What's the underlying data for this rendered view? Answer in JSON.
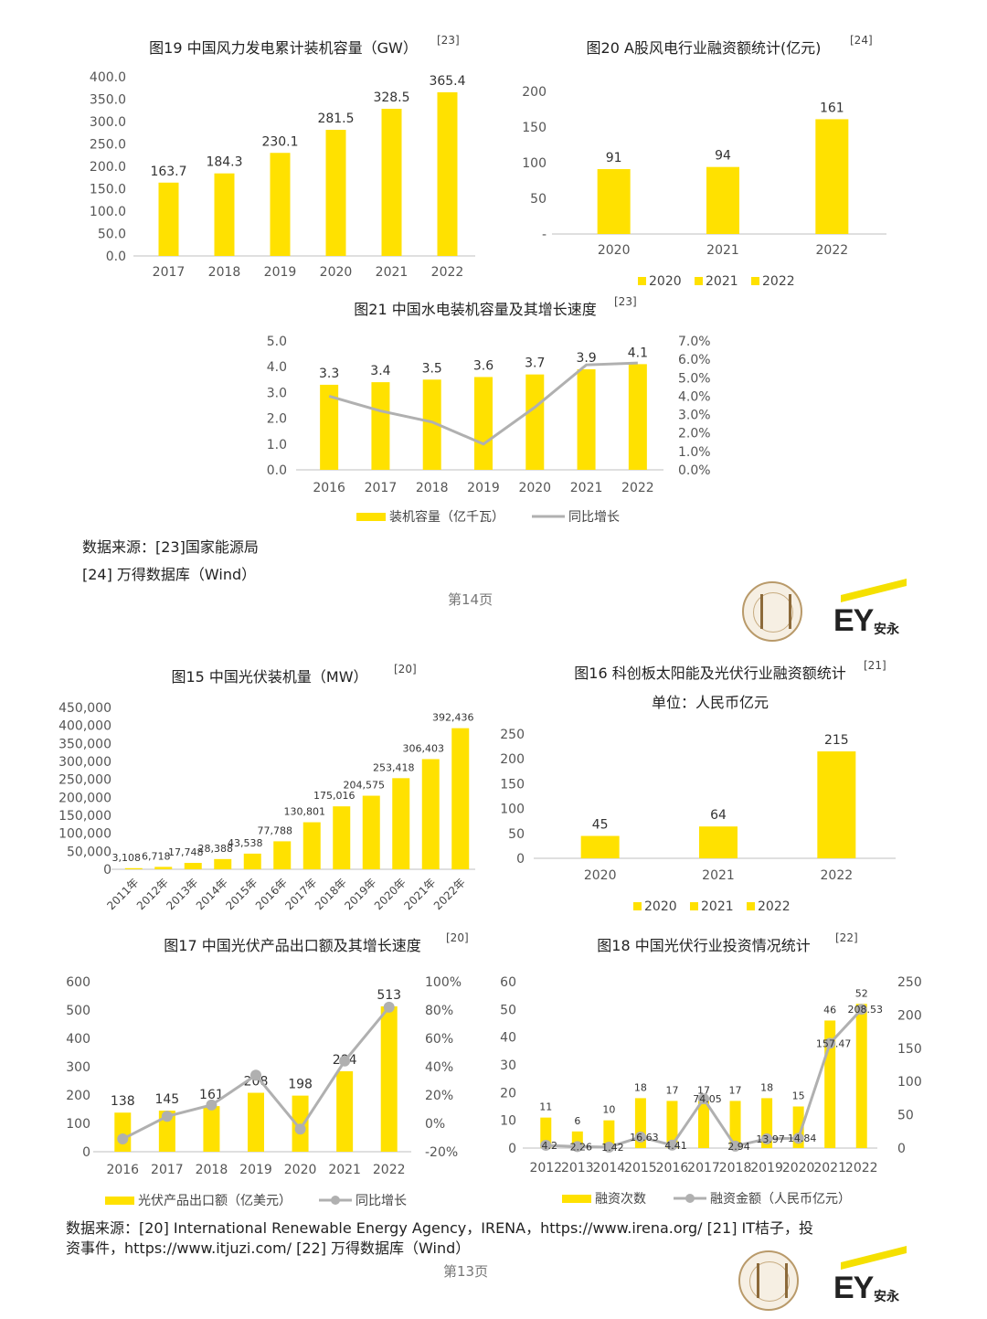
{
  "colors": {
    "bar": "#FFE100",
    "line": "#B0B0B0",
    "axis": "#BFBFBF"
  },
  "page_top": {
    "source_label": "数据来源：[23]国家能源局",
    "source_label2": "[24] 万得数据库（Wind）",
    "page_number": "第14页"
  },
  "page_bottom": {
    "source_label": "数据来源：[20] International Renewable Energy Agency，IRENA，https://www.irena.org/ [21] IT桔子，投",
    "source_label2": "资事件，https://www.itjuzi.com/ [22] 万得数据库（Wind）",
    "page_number": "第13页"
  },
  "logos": {
    "ey": "EY",
    "ey_cn": "安永"
  },
  "chart_data": [
    {
      "id": "fig19",
      "type": "bar",
      "title": "图19 中国风力发电累计装机容量（GW）",
      "ref": "[23]",
      "categories": [
        "2017",
        "2018",
        "2019",
        "2020",
        "2021",
        "2022"
      ],
      "values": [
        163.7,
        184.3,
        230.1,
        281.5,
        328.5,
        365.4
      ],
      "value_labels": [
        "163.7",
        "184.3",
        "230.1",
        "281.5",
        "328.5",
        "365.4"
      ],
      "ylim": [
        0,
        400
      ],
      "yticks": [
        "0.0",
        "50.0",
        "100.0",
        "150.0",
        "200.0",
        "250.0",
        "300.0",
        "350.0",
        "400.0"
      ]
    },
    {
      "id": "fig20",
      "type": "bar",
      "title": "图20 A股风电行业融资额统计(亿元)",
      "ref": "[24]",
      "categories": [
        "2020",
        "2021",
        "2022"
      ],
      "values": [
        91,
        94,
        161
      ],
      "value_labels": [
        "91",
        "94",
        "161"
      ],
      "ylim": [
        0,
        200
      ],
      "yticks": [
        "-",
        "50",
        "100",
        "150",
        "200"
      ],
      "legend": [
        "2020",
        "2021",
        "2022"
      ]
    },
    {
      "id": "fig21",
      "type": "bar",
      "title": "图21 中国水电装机容量及其增长速度",
      "ref": "[23]",
      "categories": [
        "2016",
        "2017",
        "2018",
        "2019",
        "2020",
        "2021",
        "2022"
      ],
      "series": [
        {
          "name": "装机容量（亿千瓦）",
          "type": "bar",
          "values": [
            3.3,
            3.4,
            3.5,
            3.6,
            3.7,
            3.9,
            4.1
          ]
        },
        {
          "name": "同比增长",
          "type": "line",
          "values": [
            4.0,
            3.2,
            2.6,
            1.4,
            3.4,
            5.7,
            5.8
          ]
        }
      ],
      "value_labels": [
        "3.3",
        "3.4",
        "3.5",
        "3.6",
        "3.7",
        "3.9",
        "4.1"
      ],
      "ylim": [
        0,
        5
      ],
      "y2lim": [
        0,
        7
      ],
      "yticks": [
        "0.0",
        "1.0",
        "2.0",
        "3.0",
        "4.0",
        "5.0"
      ],
      "y2ticks": [
        "0.0%",
        "1.0%",
        "2.0%",
        "3.0%",
        "4.0%",
        "5.0%",
        "6.0%",
        "7.0%"
      ]
    },
    {
      "id": "fig15",
      "type": "bar",
      "title": "图15  中国光伏装机量（MW）",
      "ref": "[20]",
      "categories": [
        "2011年",
        "2012年",
        "2013年",
        "2014年",
        "2015年",
        "2016年",
        "2017年",
        "2018年",
        "2019年",
        "2020年",
        "2021年",
        "2022年"
      ],
      "values": [
        3108,
        6718,
        17748,
        28388,
        43538,
        77788,
        130801,
        175016,
        204575,
        253418,
        306403,
        392436
      ],
      "value_labels": [
        "3,108",
        "6,718",
        "17,748",
        "28,388",
        "43,538",
        "77,788",
        "130,801",
        "175,016",
        "204,575",
        "253,418",
        "306,403",
        "392,436"
      ],
      "ylim": [
        0,
        450000
      ],
      "yticks": [
        "0",
        "50,000",
        "100,000",
        "150,000",
        "200,000",
        "250,000",
        "300,000",
        "350,000",
        "400,000",
        "450,000"
      ]
    },
    {
      "id": "fig16",
      "type": "bar",
      "title": "图16 科创板太阳能及光伏行业融资额统计",
      "ref": "[21]",
      "subtitle": "单位：人民币亿元",
      "categories": [
        "2020",
        "2021",
        "2022"
      ],
      "values": [
        45,
        64,
        215
      ],
      "value_labels": [
        "45",
        "64",
        "215"
      ],
      "ylim": [
        0,
        250
      ],
      "yticks": [
        "0",
        "50",
        "100",
        "150",
        "200",
        "250"
      ],
      "legend": [
        "2020",
        "2021",
        "2022"
      ]
    },
    {
      "id": "fig17",
      "type": "bar",
      "title": "图17  中国光伏产品出口额及其增长速度",
      "ref": "[20]",
      "categories": [
        "2016",
        "2017",
        "2018",
        "2019",
        "2020",
        "2021",
        "2022"
      ],
      "series": [
        {
          "name": "光伏产品出口额（亿美元）",
          "type": "bar",
          "values": [
            138,
            145,
            161,
            208,
            198,
            284,
            513
          ]
        },
        {
          "name": "同比增长",
          "type": "line",
          "values": [
            -11,
            5,
            13,
            34,
            -4,
            44,
            82
          ]
        }
      ],
      "value_labels": [
        "138",
        "145",
        "161",
        "208",
        "198",
        "284",
        "513"
      ],
      "ylim": [
        0,
        600
      ],
      "y2lim": [
        -20,
        100
      ],
      "yticks": [
        "0",
        "100",
        "200",
        "300",
        "400",
        "500",
        "600"
      ],
      "y2ticks": [
        "-20%",
        "0%",
        "20%",
        "40%",
        "60%",
        "80%",
        "100%"
      ]
    },
    {
      "id": "fig18",
      "type": "bar",
      "title": "图18  中国光伏行业投资情况统计",
      "ref": "[22]",
      "categories": [
        "2012",
        "2013",
        "2014",
        "2015",
        "2016",
        "2017",
        "2018",
        "2019",
        "2020",
        "2021",
        "2022"
      ],
      "series": [
        {
          "name": "融资次数",
          "type": "bar",
          "values": [
            11,
            6,
            10,
            18,
            17,
            17,
            17,
            18,
            15,
            46,
            52
          ]
        },
        {
          "name": "融资金额（人民币亿元）",
          "type": "line",
          "values": [
            4.2,
            2.26,
            1.42,
            16.63,
            4.41,
            74.05,
            2.94,
            13.97,
            14.84,
            157.47,
            208.53
          ]
        }
      ],
      "value_labels": [
        "11",
        "6",
        "10",
        "18",
        "17",
        "17",
        "17",
        "18",
        "15",
        "46",
        "52"
      ],
      "line_labels": [
        "4.2",
        "2.26",
        "1.42",
        "16.63",
        "4.41",
        "74.05",
        "2.94",
        "13.97",
        "14.84",
        "157.47",
        "208.53"
      ],
      "ylim": [
        0,
        60
      ],
      "y2lim": [
        0,
        250
      ],
      "yticks": [
        "0",
        "10",
        "20",
        "30",
        "40",
        "50",
        "60"
      ],
      "y2ticks": [
        "0",
        "50",
        "100",
        "150",
        "200",
        "250"
      ]
    }
  ]
}
